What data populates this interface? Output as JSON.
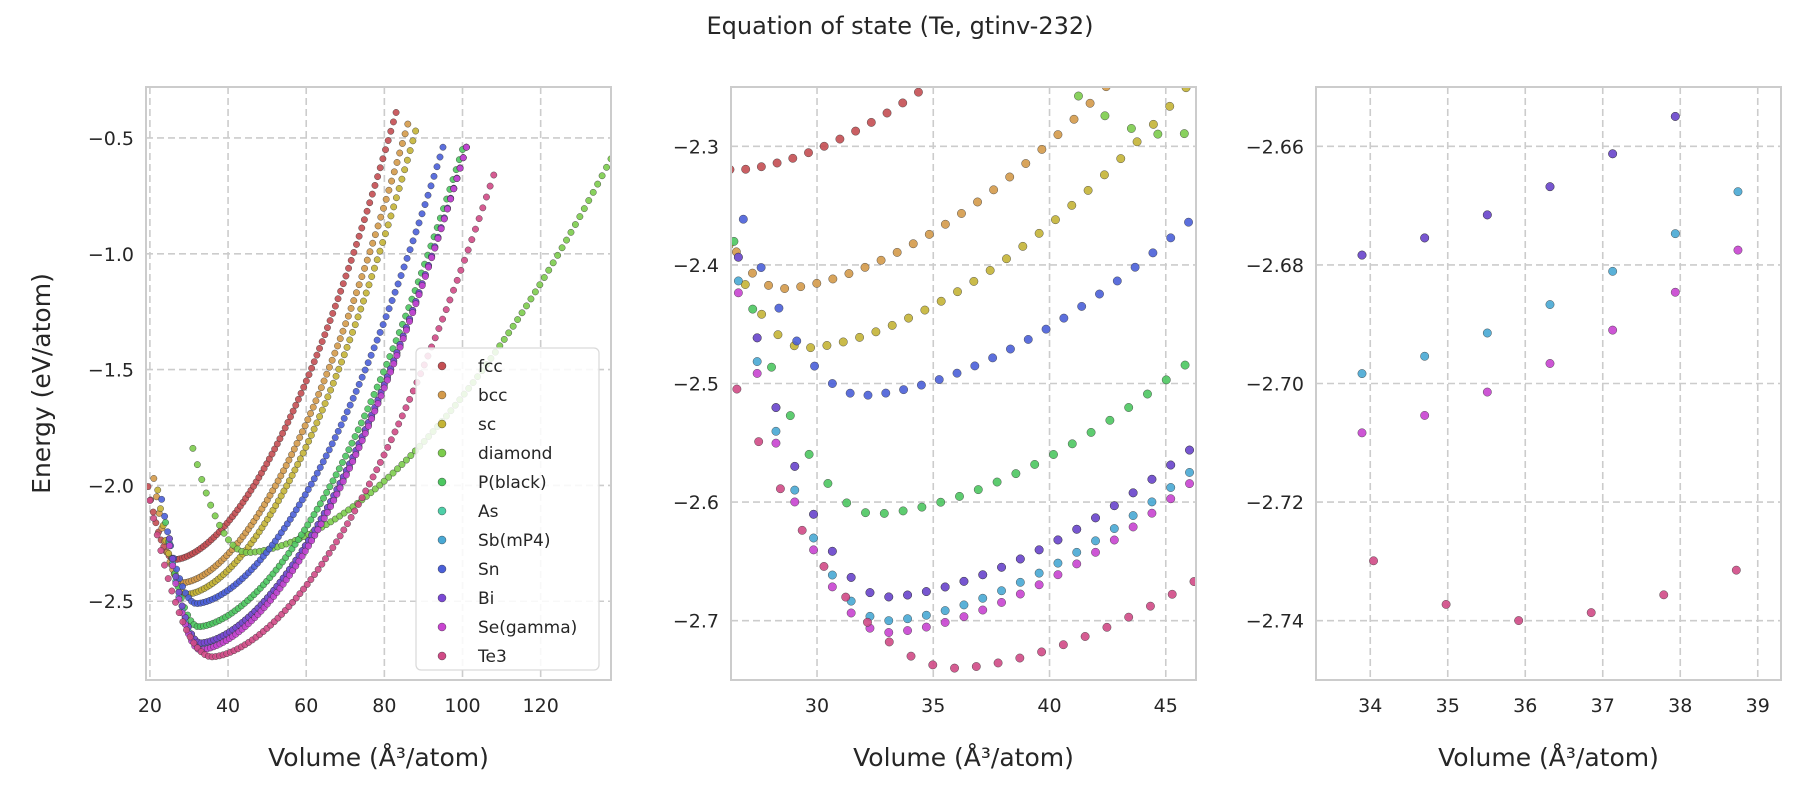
{
  "figure": {
    "title": "Equation of state (Te, gtinv-232)"
  },
  "legend": {
    "placement": "lower right",
    "panel": 0,
    "entries": [
      "fcc",
      "bcc",
      "sc",
      "diamond",
      "P(black)",
      "As",
      "Sb(mP4)",
      "Sn",
      "Bi",
      "Se(gamma)",
      "Te3"
    ]
  },
  "chart_data": [
    {
      "type": "scatter",
      "xlabel": "Volume (Å³/atom)",
      "ylabel": "Energy (eV/atom)",
      "xlim": [
        19,
        138
      ],
      "ylim": [
        -2.84,
        -0.28
      ],
      "xticks": [
        20,
        40,
        60,
        80,
        100,
        120
      ],
      "yticks": [
        -2.5,
        -2.0,
        -1.5,
        -1.0,
        -0.5
      ],
      "grid": true,
      "series": [
        {
          "name": "fcc",
          "color": "#c44e52",
          "v0": 26.5,
          "e0": -2.32,
          "vmin": 19.5,
          "vmax": 83,
          "emax": -0.39
        },
        {
          "name": "bcc",
          "color": "#d49a4a",
          "v0": 28.5,
          "e0": -2.42,
          "vmin": 21,
          "vmax": 86,
          "emax": -0.44
        },
        {
          "name": "sc",
          "color": "#c4b436",
          "v0": 29.5,
          "e0": -2.47,
          "vmin": 22,
          "vmax": 88,
          "emax": -0.47
        },
        {
          "name": "diamond",
          "color": "#7ccc4c",
          "v0": 45,
          "e0": -2.29,
          "vmin": 31,
          "vmax": 138,
          "emax": -0.59
        },
        {
          "name": "P(black)",
          "color": "#4cc760",
          "v0": 32.5,
          "e0": -2.61,
          "vmin": 24,
          "vmax": 100,
          "emax": -0.55
        },
        {
          "name": "As",
          "color": "#4ecfa8",
          "v0": 33,
          "e0": -2.68,
          "vmin": 25,
          "vmax": 101,
          "emax": -0.54
        },
        {
          "name": "Sb(mP4)",
          "color": "#48a8d4",
          "v0": 33,
          "e0": -2.7,
          "vmin": 25,
          "vmax": 101,
          "emax": -0.54
        },
        {
          "name": "Sn",
          "color": "#4a5fd8",
          "v0": 32,
          "e0": -2.51,
          "vmin": 23,
          "vmax": 95,
          "emax": -0.54
        },
        {
          "name": "Bi",
          "color": "#7a48d4",
          "v0": 33,
          "e0": -2.68,
          "vmin": 25,
          "vmax": 101,
          "emax": -0.54
        },
        {
          "name": "Se(gamma)",
          "color": "#c844d0",
          "v0": 33,
          "e0": -2.71,
          "vmin": 25,
          "vmax": 101,
          "emax": -0.54
        },
        {
          "name": "Te3",
          "color": "#d04a86",
          "v0": 36,
          "e0": -2.74,
          "vmin": 20,
          "vmax": 108,
          "emax": -0.66
        }
      ]
    },
    {
      "type": "scatter",
      "xlabel": "Volume (Å³/atom)",
      "ylabel": "",
      "xlim": [
        26.3,
        46.3
      ],
      "ylim": [
        -2.75,
        -2.25
      ],
      "xticks": [
        30,
        35,
        40,
        45
      ],
      "yticks": [
        -2.7,
        -2.6,
        -2.5,
        -2.4,
        -2.3
      ],
      "grid": true
    },
    {
      "type": "scatter",
      "xlabel": "Volume (Å³/atom)",
      "ylabel": "",
      "xlim": [
        33.3,
        39.3
      ],
      "ylim": [
        -2.75,
        -2.65
      ],
      "xticks": [
        34,
        35,
        36,
        37,
        38,
        39
      ],
      "yticks": [
        -2.74,
        -2.72,
        -2.7,
        -2.68,
        -2.66
      ],
      "grid": true
    }
  ]
}
